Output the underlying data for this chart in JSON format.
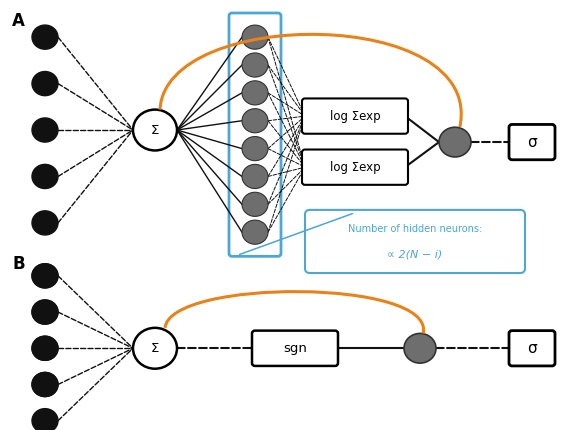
{
  "bg_color": "#ffffff",
  "panel_A_label": "A",
  "panel_B_label": "B",
  "sum_node_label": "Σ",
  "sigma_label": "σ",
  "logsumexp_label": "log Σexp",
  "sgn_label": "sgn",
  "note_line1": "Number of hidden neurons:",
  "note_line2": "∝ 2(N − i)",
  "orange_color": "#e8821a",
  "blue_box_color": "#4da6d4",
  "dark_node_color": "#6e6e6e",
  "black_node_color": "#111111",
  "line_color": "#111111"
}
